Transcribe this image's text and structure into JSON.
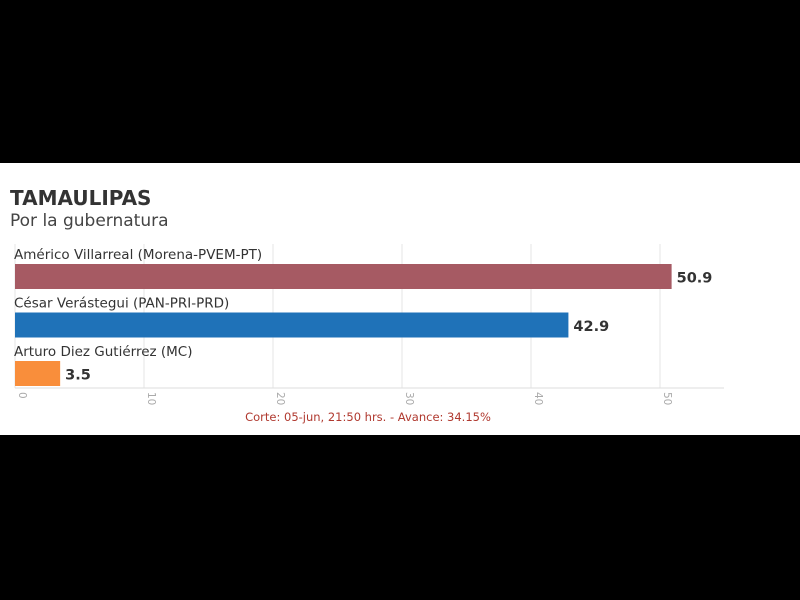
{
  "chart_data": {
    "type": "bar",
    "orientation": "horizontal",
    "title": "TAMAULIPAS",
    "subtitle": "Por la gubernatura",
    "categories": [
      "Américo Villarreal (Morena-PVEM-PT)",
      "César Verástegui (PAN-PRI-PRD)",
      "Arturo Diez Gutiérrez (MC)"
    ],
    "values": [
      50.9,
      42.9,
      3.5
    ],
    "value_labels": [
      "50.9",
      "42.9",
      "3.5"
    ],
    "colors": [
      "#a65a63",
      "#1f72b8",
      "#f98e3b"
    ],
    "xlim": [
      0,
      53
    ],
    "ticks": [
      0,
      10,
      20,
      30,
      40,
      50
    ],
    "tick_labels": [
      "0",
      "10",
      "20",
      "30",
      "40",
      "50"
    ],
    "grid": true,
    "footnote": "Corte: 05-jun, 21:50 hrs. - Avance: 34.15%"
  }
}
